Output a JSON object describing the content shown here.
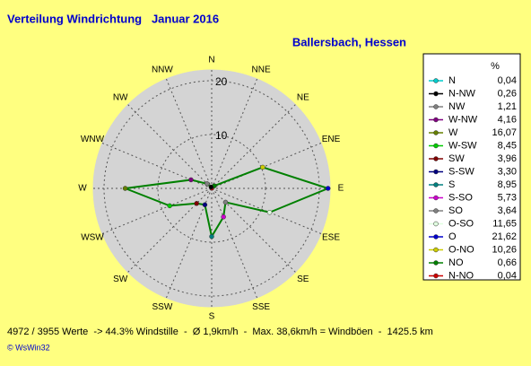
{
  "chart_data": {
    "type": "radar",
    "title": "Verteilung Windrichtung   Januar 2016",
    "subtitle": "Ballersbach, Hessen",
    "categories": [
      "N",
      "NNE",
      "NE",
      "ENE",
      "E",
      "ESE",
      "SE",
      "SSE",
      "S",
      "SSW",
      "SW",
      "WSW",
      "W",
      "WNW",
      "NW",
      "NNW"
    ],
    "values": [
      0.04,
      0.04,
      0.66,
      10.26,
      21.62,
      11.65,
      3.64,
      5.73,
      8.95,
      3.3,
      3.96,
      8.45,
      16.07,
      4.16,
      1.21,
      0.26
    ],
    "value_labels": [
      "0,04",
      "0,04",
      "0,66",
      "10,26",
      "21,62",
      "11,65",
      "3,64",
      "5,73",
      "8,95",
      "3,30",
      "3,96",
      "8,45",
      "16,07",
      "4,16",
      "1,21",
      "0,26"
    ],
    "legend_names": [
      "N",
      "N-NO",
      "NO",
      "O-NO",
      "O",
      "O-SO",
      "SO",
      "S-SO",
      "S",
      "S-SW",
      "SW",
      "W-SW",
      "W",
      "W-NW",
      "NW",
      "N-NW"
    ],
    "colors": [
      "#00cccc",
      "#cc0000",
      "#008000",
      "#cccc00",
      "#0000cc",
      "#e0ffe0",
      "#808080",
      "#cc00cc",
      "#008080",
      "#000080",
      "#800000",
      "#00cc00",
      "#668000",
      "#800080",
      "#808080",
      "#000000"
    ],
    "line_color": "#008000",
    "legend_title": "%",
    "ylim": [
      0,
      22
    ],
    "yticks": [
      10,
      20
    ],
    "footer": "4972 / 3955 Werte  -> 44.3% Windstille  -  Ø 1,9km/h  -  Max. 38,6km/h = Windböen  -  1425.5 km",
    "credit": "© WsWin32"
  }
}
